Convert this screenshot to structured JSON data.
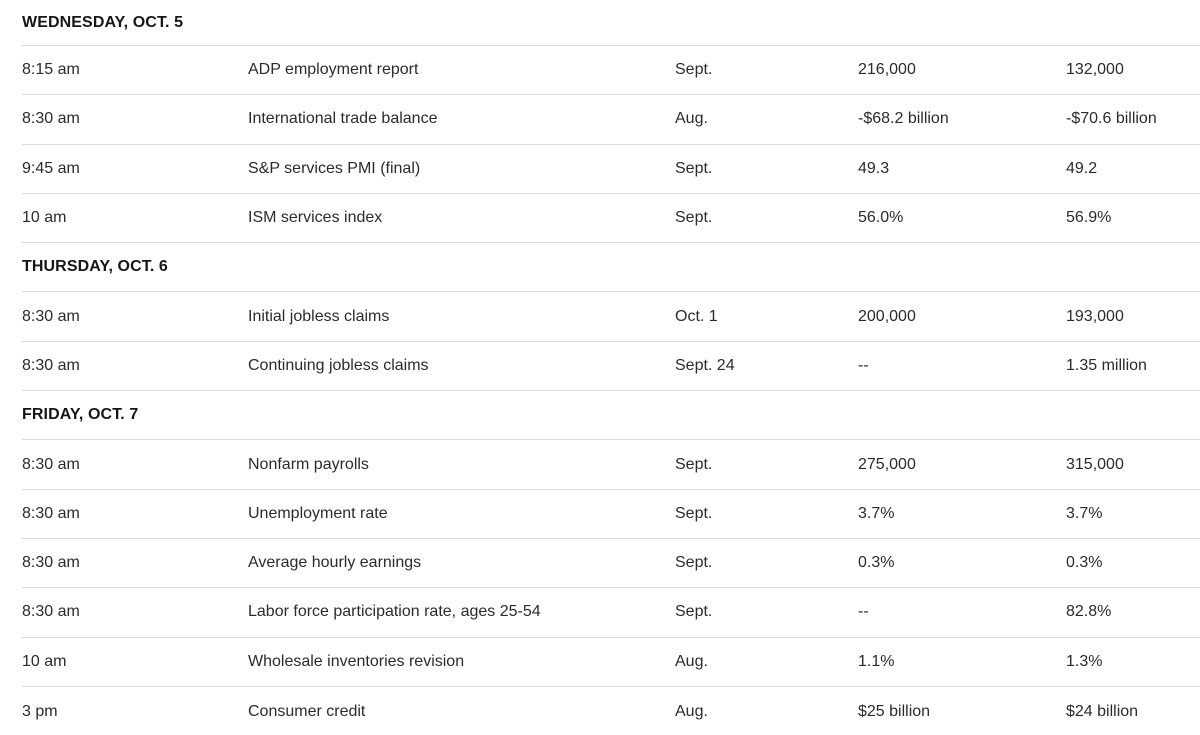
{
  "colors": {
    "background": "#ffffff",
    "text": "#2b2b2b",
    "section_header_text": "#161616",
    "divider": "#dcdcdc"
  },
  "chart_data": {
    "type": "table",
    "layout": {
      "columns": [
        "time",
        "report",
        "period",
        "value1",
        "value2"
      ],
      "grid": "off",
      "section_headers_bold_uppercase": true
    },
    "sections": [
      {
        "header": "WEDNESDAY, OCT. 5",
        "rows": [
          {
            "time": "8:15 am",
            "report": "ADP employment report",
            "period": "Sept.",
            "value1": "216,000",
            "value2": "132,000"
          },
          {
            "time": "8:30 am",
            "report": "International trade balance",
            "period": "Aug.",
            "value1": "-$68.2 billion",
            "value2": "-$70.6 billion"
          },
          {
            "time": "9:45 am",
            "report": "S&P services PMI (final)",
            "period": "Sept.",
            "value1": "49.3",
            "value2": "49.2"
          },
          {
            "time": "10 am",
            "report": "ISM services index",
            "period": "Sept.",
            "value1": "56.0%",
            "value2": "56.9%"
          }
        ]
      },
      {
        "header": "THURSDAY, OCT. 6",
        "rows": [
          {
            "time": "8:30 am",
            "report": "Initial jobless claims",
            "period": "Oct. 1",
            "value1": "200,000",
            "value2": "193,000"
          },
          {
            "time": "8:30 am",
            "report": "Continuing jobless claims",
            "period": "Sept. 24",
            "value1": "--",
            "value2": "1.35 million"
          }
        ]
      },
      {
        "header": "FRIDAY, OCT. 7",
        "rows": [
          {
            "time": "8:30 am",
            "report": "Nonfarm payrolls",
            "period": "Sept.",
            "value1": "275,000",
            "value2": "315,000"
          },
          {
            "time": "8:30 am",
            "report": "Unemployment rate",
            "period": "Sept.",
            "value1": "3.7%",
            "value2": "3.7%"
          },
          {
            "time": "8:30 am",
            "report": "Average hourly earnings",
            "period": "Sept.",
            "value1": "0.3%",
            "value2": "0.3%"
          },
          {
            "time": "8:30 am",
            "report": "Labor force participation rate, ages 25-54",
            "period": "Sept.",
            "value1": "--",
            "value2": "82.8%"
          },
          {
            "time": "10 am",
            "report": "Wholesale inventories revision",
            "period": "Aug.",
            "value1": "1.1%",
            "value2": "1.3%"
          },
          {
            "time": "3 pm",
            "report": "Consumer credit",
            "period": "Aug.",
            "value1": "$25 billion",
            "value2": "$24 billion"
          }
        ]
      }
    ]
  }
}
